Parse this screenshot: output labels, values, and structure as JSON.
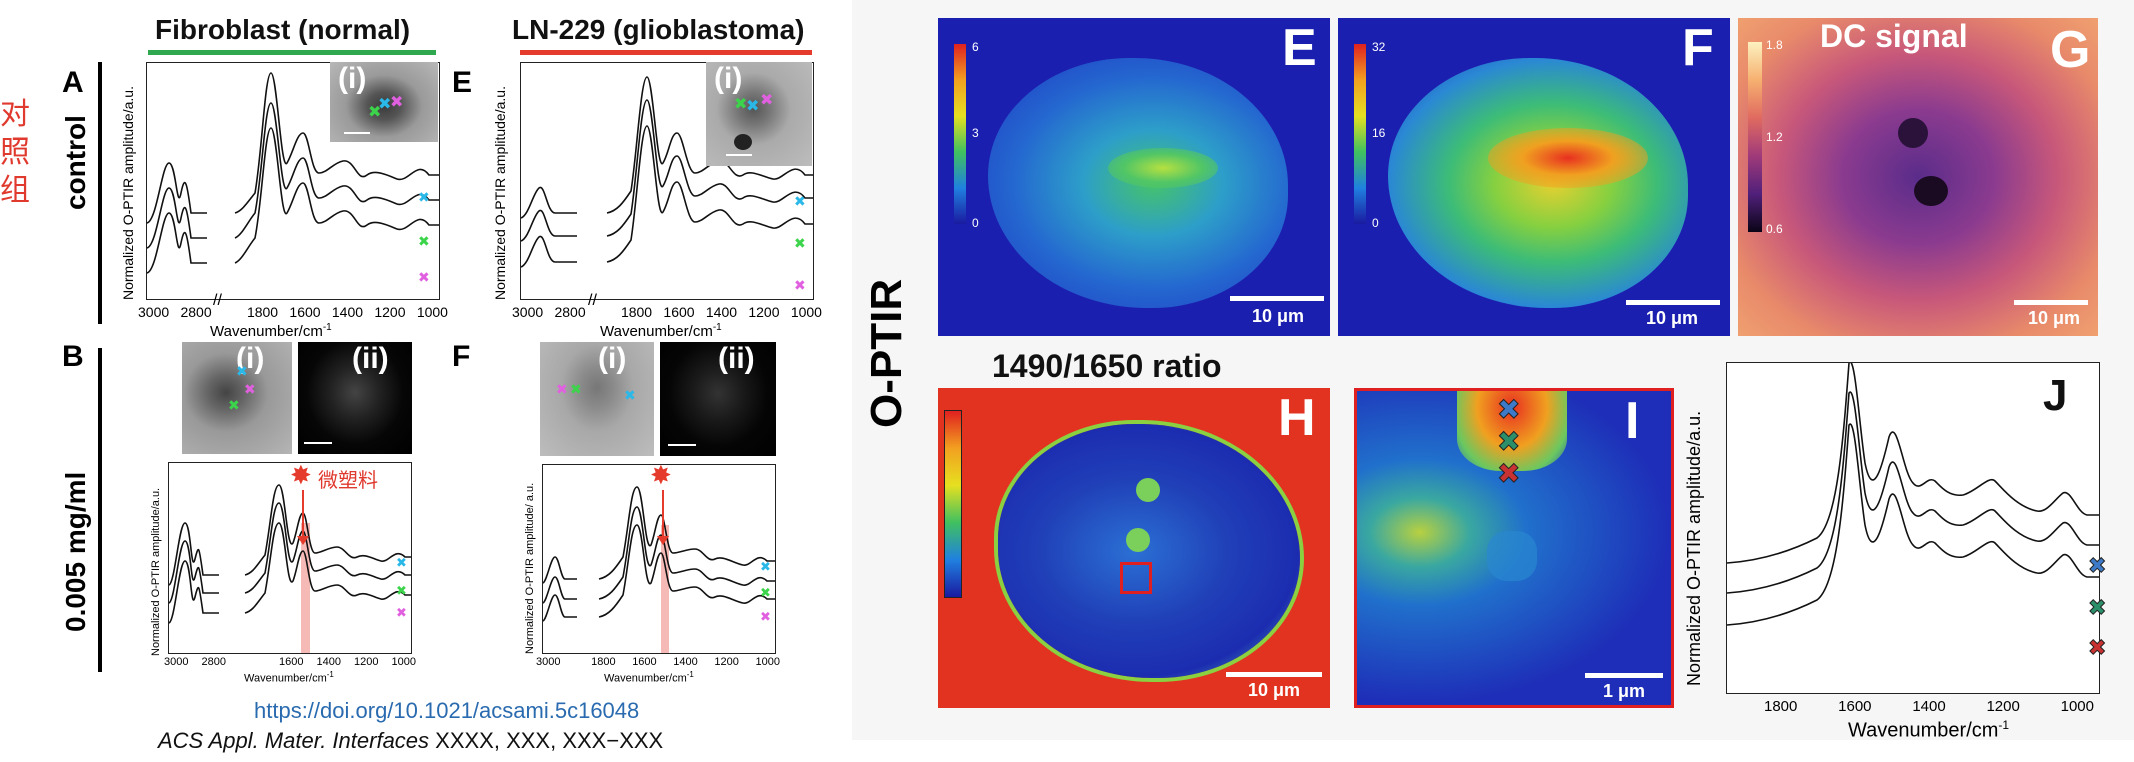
{
  "left": {
    "chinese_label": [
      "对",
      "照",
      "组"
    ],
    "header_fibro": "Fibroblast (normal)",
    "header_ln": "LN-229 (glioblastoma)",
    "row_control": "control",
    "row_dose": "0.005 mg/ml",
    "letters": {
      "A": "A",
      "B": "B",
      "E": "E",
      "F": "F"
    },
    "roman_i": "(i)",
    "roman_ii": "(ii)",
    "ylabel": "Normalized O-PTIR amplitude/a.u.",
    "ylabel_small": "Normalized O-PTIR amplitude/ a.u.",
    "xlabel": "Wavenumber/cm",
    "xlabel_sup": "-1",
    "ticks_AE": [
      "3000",
      "2800",
      "1800",
      "1600",
      "1400",
      "1200",
      "1000"
    ],
    "ticks_BF": [
      "3000",
      "2800",
      "1600",
      "1400",
      "1200",
      "1000"
    ],
    "ticks_F": [
      "3000",
      "1800",
      "1600",
      "1400",
      "1200",
      "1000"
    ],
    "microplastic_label": "微塑料",
    "doi": "https://doi.org/10.1021/acsami.5c16048",
    "journal": "ACS Appl. Mater. Interfaces",
    "citation_rest": " XXXX, XXX, XXX−XXX"
  },
  "right": {
    "side_title": "O-PTIR",
    "ratio_title": "1490/1650 ratio",
    "panels": {
      "E": "E",
      "F": "F",
      "G": "G",
      "H": "H",
      "I": "I",
      "J": "J"
    },
    "g_title": "DC signal",
    "cb_E": [
      "6",
      "3",
      "0"
    ],
    "cb_F": [
      "32",
      "16",
      "0"
    ],
    "cb_G": [
      "1.8",
      "1.2",
      "0.6"
    ],
    "scale_10": "10 μm",
    "scale_1": "1 μm",
    "j_ylabel": "Normalized O-PTIR amplitude/a.u.",
    "j_xlabel": "Wavenumber/cm",
    "j_xlabel_sup": "-1",
    "j_ticks": [
      "1800",
      "1600",
      "1400",
      "1200",
      "1000"
    ]
  },
  "colors": {
    "green_bar": "#2fa84f",
    "red_bar": "#e53b2c",
    "chinese_red": "#e03a2f",
    "doi_blue": "#2a6bb0",
    "mark_cyan": "#2ab8e8",
    "mark_green": "#3cd44a",
    "mark_magenta": "#e060e0",
    "mark_blue": "#3d7ac8",
    "mark_teal": "#2b8f6a",
    "mark_red": "#c83232"
  }
}
